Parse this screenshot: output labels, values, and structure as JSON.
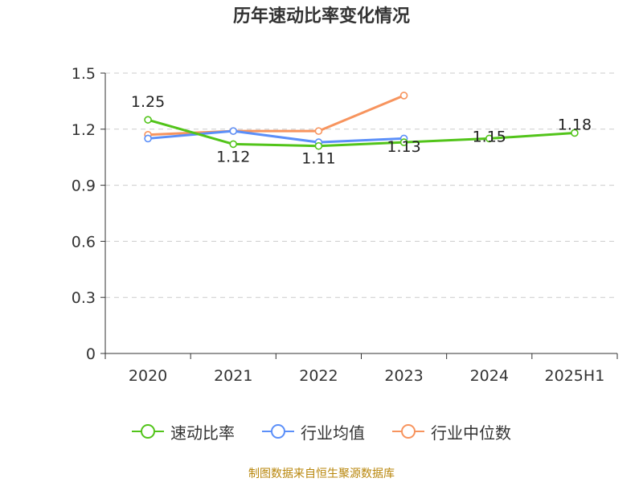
{
  "chart_data": {
    "type": "line",
    "title": "历年速动比率变化情况",
    "categories": [
      "2020",
      "2021",
      "2022",
      "2023",
      "2024",
      "2025H1"
    ],
    "ylim": [
      0,
      1.5
    ],
    "yticks": [
      "0",
      "0.3",
      "0.6",
      "0.9",
      "1.2",
      "1.5"
    ],
    "grid": true,
    "legend_position": "bottom",
    "series": [
      {
        "name": "速动比率",
        "color": "#52c41a",
        "values": [
          1.25,
          1.12,
          1.11,
          1.13,
          1.15,
          1.18
        ],
        "labels": [
          "1.25",
          "1.12",
          "1.11",
          "1.13",
          "1.15",
          "1.18"
        ]
      },
      {
        "name": "行业均值",
        "color": "#5b8ff9",
        "values": [
          1.15,
          1.19,
          1.13,
          1.15,
          null,
          null
        ]
      },
      {
        "name": "行业中位数",
        "color": "#f7945e",
        "values": [
          1.17,
          1.19,
          1.19,
          1.38,
          null,
          null
        ]
      }
    ]
  },
  "source": "制图数据来自恒生聚源数据库"
}
